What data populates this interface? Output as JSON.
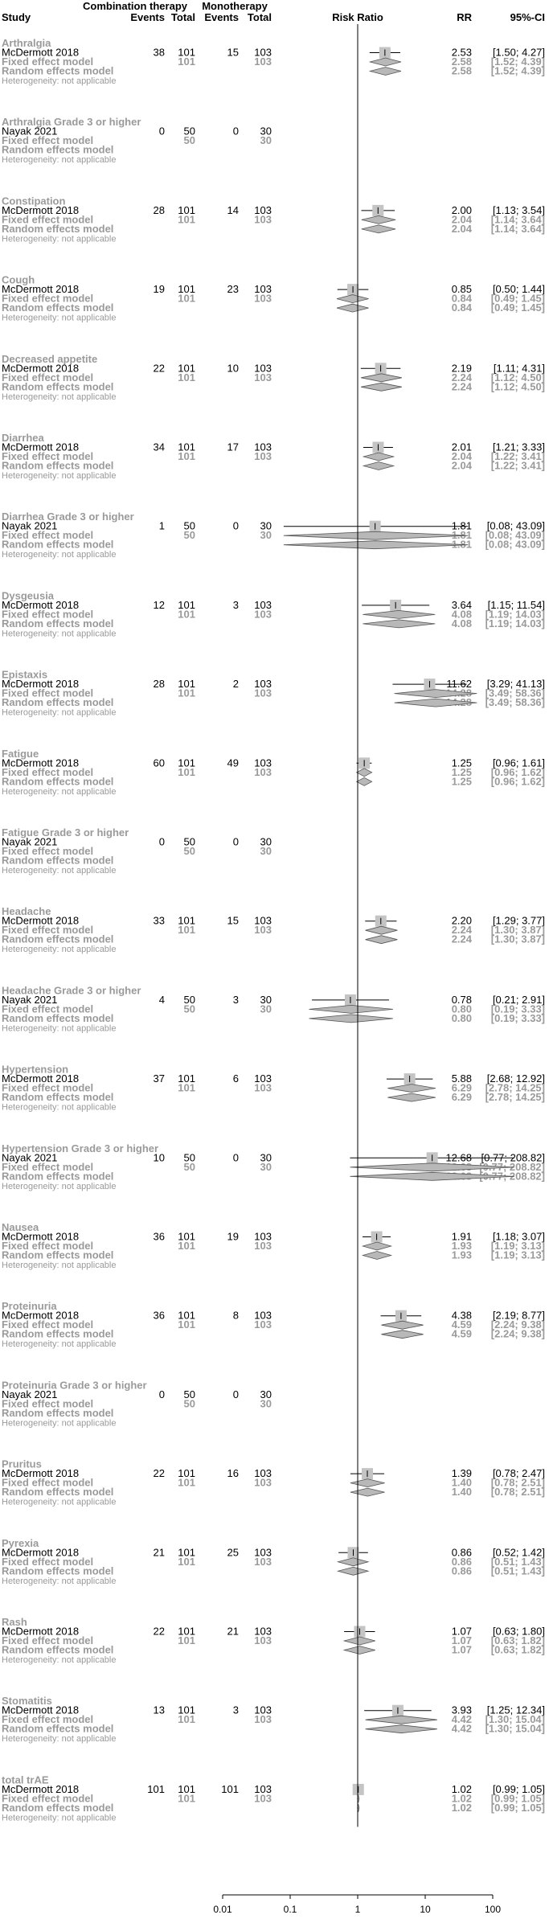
{
  "chart_data": {
    "type": "forest",
    "headers": {
      "study": "Study",
      "group1": "Combination therapy",
      "group2": "Monotherapy",
      "events": "Events",
      "total": "Total",
      "effect": "Risk Ratio",
      "rr": "RR",
      "ci": "95%-CI"
    },
    "labels": {
      "fixed": "Fixed effect model",
      "random": "Random effects model",
      "heterogeneity": "Heterogeneity: not applicable"
    },
    "x_axis": {
      "scale": "log",
      "ticks": [
        "0.01",
        "0.1",
        "1",
        "10",
        "100"
      ],
      "tick_values": [
        0.01,
        0.1,
        1,
        10,
        100
      ]
    },
    "groups": [
      {
        "name": "Arthralgia",
        "study": "McDermott 2018",
        "e1": "38",
        "n1": "101",
        "e2": "15",
        "n2": "103",
        "rr": "2.53",
        "ci": "[1.50;  4.27]",
        "lo": 1.5,
        "hi": 4.27,
        "fixed_rr": "2.58",
        "fixed_ci": "[1.52;  4.39]",
        "flo": 1.52,
        "fhi": 4.39,
        "random_rr": "2.58",
        "random_ci": "[1.52;  4.39]",
        "rlo": 1.52,
        "rhi": 4.39,
        "w": 0.5
      },
      {
        "name": "Arthralgia Grade 3 or higher",
        "study": "Nayak 2021",
        "e1": "0",
        "n1": "50",
        "e2": "0",
        "n2": "30",
        "rr": "",
        "ci": "",
        "lo": null,
        "hi": null,
        "fixed_rr": "",
        "fixed_ci": "",
        "flo": null,
        "fhi": null,
        "random_rr": "",
        "random_ci": "",
        "rlo": null,
        "rhi": null,
        "w": 0
      },
      {
        "name": "Constipation",
        "study": "McDermott 2018",
        "e1": "28",
        "n1": "101",
        "e2": "14",
        "n2": "103",
        "rr": "2.00",
        "ci": "[1.13;  3.54]",
        "lo": 1.13,
        "hi": 3.54,
        "fixed_rr": "2.04",
        "fixed_ci": "[1.14;  3.64]",
        "flo": 1.14,
        "fhi": 3.64,
        "random_rr": "2.04",
        "random_ci": "[1.14;  3.64]",
        "rlo": 1.14,
        "rhi": 3.64,
        "w": 0.5
      },
      {
        "name": "Cough",
        "study": "McDermott 2018",
        "e1": "19",
        "n1": "101",
        "e2": "23",
        "n2": "103",
        "rr": "0.85",
        "ci": "[0.50;  1.44]",
        "lo": 0.5,
        "hi": 1.44,
        "fixed_rr": "0.84",
        "fixed_ci": "[0.49;  1.45]",
        "flo": 0.49,
        "fhi": 1.45,
        "random_rr": "0.84",
        "random_ci": "[0.49;  1.45]",
        "rlo": 0.49,
        "rhi": 1.45,
        "w": 0.5
      },
      {
        "name": "Decreased appetite",
        "study": "McDermott 2018",
        "e1": "22",
        "n1": "101",
        "e2": "10",
        "n2": "103",
        "rr": "2.19",
        "ci": "[1.11;  4.31]",
        "lo": 1.11,
        "hi": 4.31,
        "fixed_rr": "2.24",
        "fixed_ci": "[1.12;  4.50]",
        "flo": 1.12,
        "fhi": 4.5,
        "random_rr": "2.24",
        "random_ci": "[1.12;  4.50]",
        "rlo": 1.12,
        "rhi": 4.5,
        "w": 0.5
      },
      {
        "name": "Diarrhea",
        "study": "McDermott 2018",
        "e1": "34",
        "n1": "101",
        "e2": "17",
        "n2": "103",
        "rr": "2.01",
        "ci": "[1.21;  3.33]",
        "lo": 1.21,
        "hi": 3.33,
        "fixed_rr": "2.04",
        "fixed_ci": "[1.22;  3.41]",
        "flo": 1.22,
        "fhi": 3.41,
        "random_rr": "2.04",
        "random_ci": "[1.22;  3.41]",
        "rlo": 1.22,
        "rhi": 3.41,
        "w": 0.5
      },
      {
        "name": "Diarrhea Grade 3 or higher",
        "study": "Nayak 2021",
        "e1": "1",
        "n1": "50",
        "e2": "0",
        "n2": "30",
        "rr": "1.81",
        "ci": "[0.08; 43.09]",
        "lo": 0.08,
        "hi": 43.09,
        "fixed_rr": "1.81",
        "fixed_ci": "[0.08; 43.09]",
        "flo": 0.08,
        "fhi": 43.09,
        "random_rr": "1.81",
        "random_ci": "[0.08; 43.09]",
        "rlo": 0.08,
        "rhi": 43.09,
        "w": 0.5
      },
      {
        "name": "Dysgeusia",
        "study": "McDermott 2018",
        "e1": "12",
        "n1": "101",
        "e2": "3",
        "n2": "103",
        "rr": "3.64",
        "ci": "[1.15; 11.54]",
        "lo": 1.15,
        "hi": 11.54,
        "fixed_rr": "4.08",
        "fixed_ci": "[1.19; 14.03]",
        "flo": 1.19,
        "fhi": 14.03,
        "random_rr": "4.08",
        "random_ci": "[1.19; 14.03]",
        "rlo": 1.19,
        "rhi": 14.03,
        "w": 0.5
      },
      {
        "name": "Epistaxis",
        "study": "McDermott 2018",
        "e1": "28",
        "n1": "101",
        "e2": "2",
        "n2": "103",
        "rr": "11.62",
        "ci": "[3.29; 41.13]",
        "lo": 3.29,
        "hi": 41.13,
        "fixed_rr": "14.28",
        "fixed_ci": "[3.49; 58.36]",
        "flo": 3.49,
        "fhi": 58.36,
        "random_rr": "14.28",
        "random_ci": "[3.49; 58.36]",
        "rlo": 3.49,
        "rhi": 58.36,
        "w": 0.5
      },
      {
        "name": "Fatigue",
        "study": "McDermott 2018",
        "e1": "60",
        "n1": "101",
        "e2": "49",
        "n2": "103",
        "rr": "1.25",
        "ci": "[0.96;  1.61]",
        "lo": 0.96,
        "hi": 1.61,
        "fixed_rr": "1.25",
        "fixed_ci": "[0.96;  1.62]",
        "flo": 0.96,
        "fhi": 1.62,
        "random_rr": "1.25",
        "random_ci": "[0.96;  1.62]",
        "rlo": 0.96,
        "rhi": 1.62,
        "w": 0.5
      },
      {
        "name": "Fatigue Grade 3 or higher",
        "study": "Nayak 2021",
        "e1": "0",
        "n1": "50",
        "e2": "0",
        "n2": "30",
        "rr": "",
        "ci": "",
        "lo": null,
        "hi": null,
        "fixed_rr": "",
        "fixed_ci": "",
        "flo": null,
        "fhi": null,
        "random_rr": "",
        "random_ci": "",
        "rlo": null,
        "rhi": null,
        "w": 0
      },
      {
        "name": "Headache",
        "study": "McDermott 2018",
        "e1": "33",
        "n1": "101",
        "e2": "15",
        "n2": "103",
        "rr": "2.20",
        "ci": "[1.29;  3.77]",
        "lo": 1.29,
        "hi": 3.77,
        "fixed_rr": "2.24",
        "fixed_ci": "[1.30;  3.87]",
        "flo": 1.3,
        "fhi": 3.87,
        "random_rr": "2.24",
        "random_ci": "[1.30;  3.87]",
        "rlo": 1.3,
        "rhi": 3.87,
        "w": 0.5
      },
      {
        "name": "Headache Grade 3 or higher",
        "study": "Nayak 2021",
        "e1": "4",
        "n1": "50",
        "e2": "3",
        "n2": "30",
        "rr": "0.78",
        "ci": "[0.21;  2.91]",
        "lo": 0.21,
        "hi": 2.91,
        "fixed_rr": "0.80",
        "fixed_ci": "[0.19;  3.33]",
        "flo": 0.19,
        "fhi": 3.33,
        "random_rr": "0.80",
        "random_ci": "[0.19;  3.33]",
        "rlo": 0.19,
        "rhi": 3.33,
        "w": 0.5
      },
      {
        "name": "Hypertension",
        "study": "McDermott 2018",
        "e1": "37",
        "n1": "101",
        "e2": "6",
        "n2": "103",
        "rr": "5.88",
        "ci": "[2.68; 12.92]",
        "lo": 2.68,
        "hi": 12.92,
        "fixed_rr": "6.29",
        "fixed_ci": "[2.78; 14.25]",
        "flo": 2.78,
        "fhi": 14.25,
        "random_rr": "6.29",
        "random_ci": "[2.78; 14.25]",
        "rlo": 2.78,
        "rhi": 14.25,
        "w": 0.5
      },
      {
        "name": "Hypertension Grade 3 or higher",
        "study": "Nayak 2021",
        "e1": "10",
        "n1": "50",
        "e2": "0",
        "n2": "30",
        "rr": "12.68",
        "ci": "[0.77; 208.82]",
        "lo": 0.77,
        "hi": 208.82,
        "fixed_rr": "12.68",
        "fixed_ci": "[0.77; 208.82]",
        "flo": 0.77,
        "fhi": 208.82,
        "random_rr": "12.68",
        "random_ci": "[0.77; 208.82]",
        "rlo": 0.77,
        "rhi": 208.82,
        "w": 0.5
      },
      {
        "name": "Nausea",
        "study": "McDermott 2018",
        "e1": "36",
        "n1": "101",
        "e2": "19",
        "n2": "103",
        "rr": "1.91",
        "ci": "[1.18;  3.07]",
        "lo": 1.18,
        "hi": 3.07,
        "fixed_rr": "1.93",
        "fixed_ci": "[1.19;  3.13]",
        "flo": 1.19,
        "fhi": 3.13,
        "random_rr": "1.93",
        "random_ci": "[1.19;  3.13]",
        "rlo": 1.19,
        "rhi": 3.13,
        "w": 0.5
      },
      {
        "name": "Proteinuria",
        "study": "McDermott 2018",
        "e1": "36",
        "n1": "101",
        "e2": "8",
        "n2": "103",
        "rr": "4.38",
        "ci": "[2.19;  8.77]",
        "lo": 2.19,
        "hi": 8.77,
        "fixed_rr": "4.59",
        "fixed_ci": "[2.24;  9.38]",
        "flo": 2.24,
        "fhi": 9.38,
        "random_rr": "4.59",
        "random_ci": "[2.24;  9.38]",
        "rlo": 2.24,
        "rhi": 9.38,
        "w": 0.5
      },
      {
        "name": "Proteinuria Grade 3 or higher",
        "study": "Nayak 2021",
        "e1": "0",
        "n1": "50",
        "e2": "0",
        "n2": "30",
        "rr": "",
        "ci": "",
        "lo": null,
        "hi": null,
        "fixed_rr": "",
        "fixed_ci": "",
        "flo": null,
        "fhi": null,
        "random_rr": "",
        "random_ci": "",
        "rlo": null,
        "rhi": null,
        "w": 0
      },
      {
        "name": "Pruritus",
        "study": "McDermott 2018",
        "e1": "22",
        "n1": "101",
        "e2": "16",
        "n2": "103",
        "rr": "1.39",
        "ci": "[0.78;  2.47]",
        "lo": 0.78,
        "hi": 2.47,
        "fixed_rr": "1.40",
        "fixed_ci": "[0.78;  2.51]",
        "flo": 0.78,
        "fhi": 2.51,
        "random_rr": "1.40",
        "random_ci": "[0.78;  2.51]",
        "rlo": 0.78,
        "rhi": 2.51,
        "w": 0.5
      },
      {
        "name": "Pyrexia",
        "study": "McDermott 2018",
        "e1": "21",
        "n1": "101",
        "e2": "25",
        "n2": "103",
        "rr": "0.86",
        "ci": "[0.52;  1.42]",
        "lo": 0.52,
        "hi": 1.42,
        "fixed_rr": "0.86",
        "fixed_ci": "[0.51;  1.43]",
        "flo": 0.51,
        "fhi": 1.43,
        "random_rr": "0.86",
        "random_ci": "[0.51;  1.43]",
        "rlo": 0.51,
        "rhi": 1.43,
        "w": 0.5
      },
      {
        "name": "Rash",
        "study": "McDermott 2018",
        "e1": "22",
        "n1": "101",
        "e2": "21",
        "n2": "103",
        "rr": "1.07",
        "ci": "[0.63;  1.80]",
        "lo": 0.63,
        "hi": 1.8,
        "fixed_rr": "1.07",
        "fixed_ci": "[0.63;  1.82]",
        "flo": 0.63,
        "fhi": 1.82,
        "random_rr": "1.07",
        "random_ci": "[0.63;  1.82]",
        "rlo": 0.63,
        "rhi": 1.82,
        "w": 0.5
      },
      {
        "name": "Stomatitis",
        "study": "McDermott 2018",
        "e1": "13",
        "n1": "101",
        "e2": "3",
        "n2": "103",
        "rr": "3.93",
        "ci": "[1.25; 12.34]",
        "lo": 1.25,
        "hi": 12.34,
        "fixed_rr": "4.42",
        "fixed_ci": "[1.30; 15.04]",
        "flo": 1.3,
        "fhi": 15.04,
        "random_rr": "4.42",
        "random_ci": "[1.30; 15.04]",
        "rlo": 1.3,
        "rhi": 15.04,
        "w": 0.5
      },
      {
        "name": "total trAE",
        "study": "McDermott 2018",
        "e1": "101",
        "n1": "101",
        "e2": "101",
        "n2": "103",
        "rr": "1.02",
        "ci": "[0.99;  1.05]",
        "lo": 0.99,
        "hi": 1.05,
        "fixed_rr": "1.02",
        "fixed_ci": "[0.99;  1.05]",
        "flo": 0.99,
        "fhi": 1.05,
        "random_rr": "1.02",
        "random_ci": "[0.99;  1.05]",
        "rlo": 0.99,
        "rhi": 1.05,
        "w": 0.5
      }
    ]
  }
}
